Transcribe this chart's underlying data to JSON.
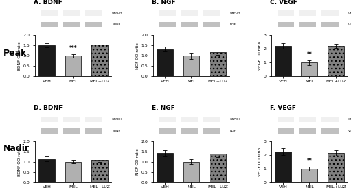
{
  "panels": {
    "A": {
      "title": "A. BDNF",
      "ylabel": "BDNF OD ratio",
      "ylim": [
        0,
        2.0
      ],
      "yticks": [
        0,
        0.5,
        1.0,
        1.5,
        2.0
      ],
      "values": [
        1.52,
        1.0,
        1.55
      ],
      "errors": [
        0.1,
        0.08,
        0.1
      ],
      "colors": [
        "#1a1a1a",
        "#b0b0b0",
        "#808080"
      ],
      "sig": {
        "index": 1,
        "text": "***"
      },
      "gene_label": "BDNF"
    },
    "B": {
      "title": "B. NGF",
      "ylabel": "NGF OD ratio",
      "ylim": [
        0,
        2.0
      ],
      "yticks": [
        0,
        0.5,
        1.0,
        1.5,
        2.0
      ],
      "values": [
        1.32,
        1.0,
        1.18
      ],
      "errors": [
        0.12,
        0.15,
        0.15
      ],
      "colors": [
        "#1a1a1a",
        "#b0b0b0",
        "#808080"
      ],
      "sig": null,
      "gene_label": "NGF"
    },
    "C": {
      "title": "C. VEGF",
      "ylabel": "VEGF OD ratio",
      "ylim": [
        0,
        3.0
      ],
      "yticks": [
        0,
        1.0,
        2.0,
        3.0
      ],
      "values": [
        2.2,
        1.0,
        2.2
      ],
      "errors": [
        0.2,
        0.18,
        0.15
      ],
      "colors": [
        "#1a1a1a",
        "#b0b0b0",
        "#808080"
      ],
      "sig": {
        "index": 1,
        "text": "**"
      },
      "gene_label": "VEGF"
    },
    "D": {
      "title": "D. BDNF",
      "ylabel": "BDNF OD ratio",
      "ylim": [
        0,
        2.0
      ],
      "yticks": [
        0,
        0.5,
        1.0,
        1.5,
        2.0
      ],
      "values": [
        1.13,
        1.0,
        1.08
      ],
      "errors": [
        0.12,
        0.08,
        0.1
      ],
      "colors": [
        "#1a1a1a",
        "#b0b0b0",
        "#808080"
      ],
      "sig": null,
      "gene_label": "BDNF"
    },
    "E": {
      "title": "E. NGF",
      "ylabel": "NGF OD ratio",
      "ylim": [
        0,
        2.0
      ],
      "yticks": [
        0,
        0.5,
        1.0,
        1.5,
        2.0
      ],
      "values": [
        1.42,
        1.0,
        1.4
      ],
      "errors": [
        0.15,
        0.12,
        0.18
      ],
      "colors": [
        "#1a1a1a",
        "#b0b0b0",
        "#808080"
      ],
      "sig": null,
      "gene_label": "NGF"
    },
    "F": {
      "title": "F. VEGF",
      "ylabel": "VEGF OD ratio",
      "ylim": [
        0,
        3.0
      ],
      "yticks": [
        0,
        1.0,
        2.0,
        3.0
      ],
      "values": [
        2.25,
        1.0,
        2.15
      ],
      "errors": [
        0.25,
        0.15,
        0.2
      ],
      "colors": [
        "#1a1a1a",
        "#b0b0b0",
        "#808080"
      ],
      "sig": {
        "index": 1,
        "text": "**"
      },
      "gene_label": "VEGF"
    }
  },
  "categories": [
    "VEH",
    "MEL",
    "MEL+LUZ"
  ],
  "row_labels": [
    "Peak",
    "Nadir"
  ],
  "background_color": "#ffffff",
  "gel_bg": "#1c1c1c",
  "gel_band_bright": "#f0f0f0",
  "gel_band_dim": "#c0c0c0"
}
